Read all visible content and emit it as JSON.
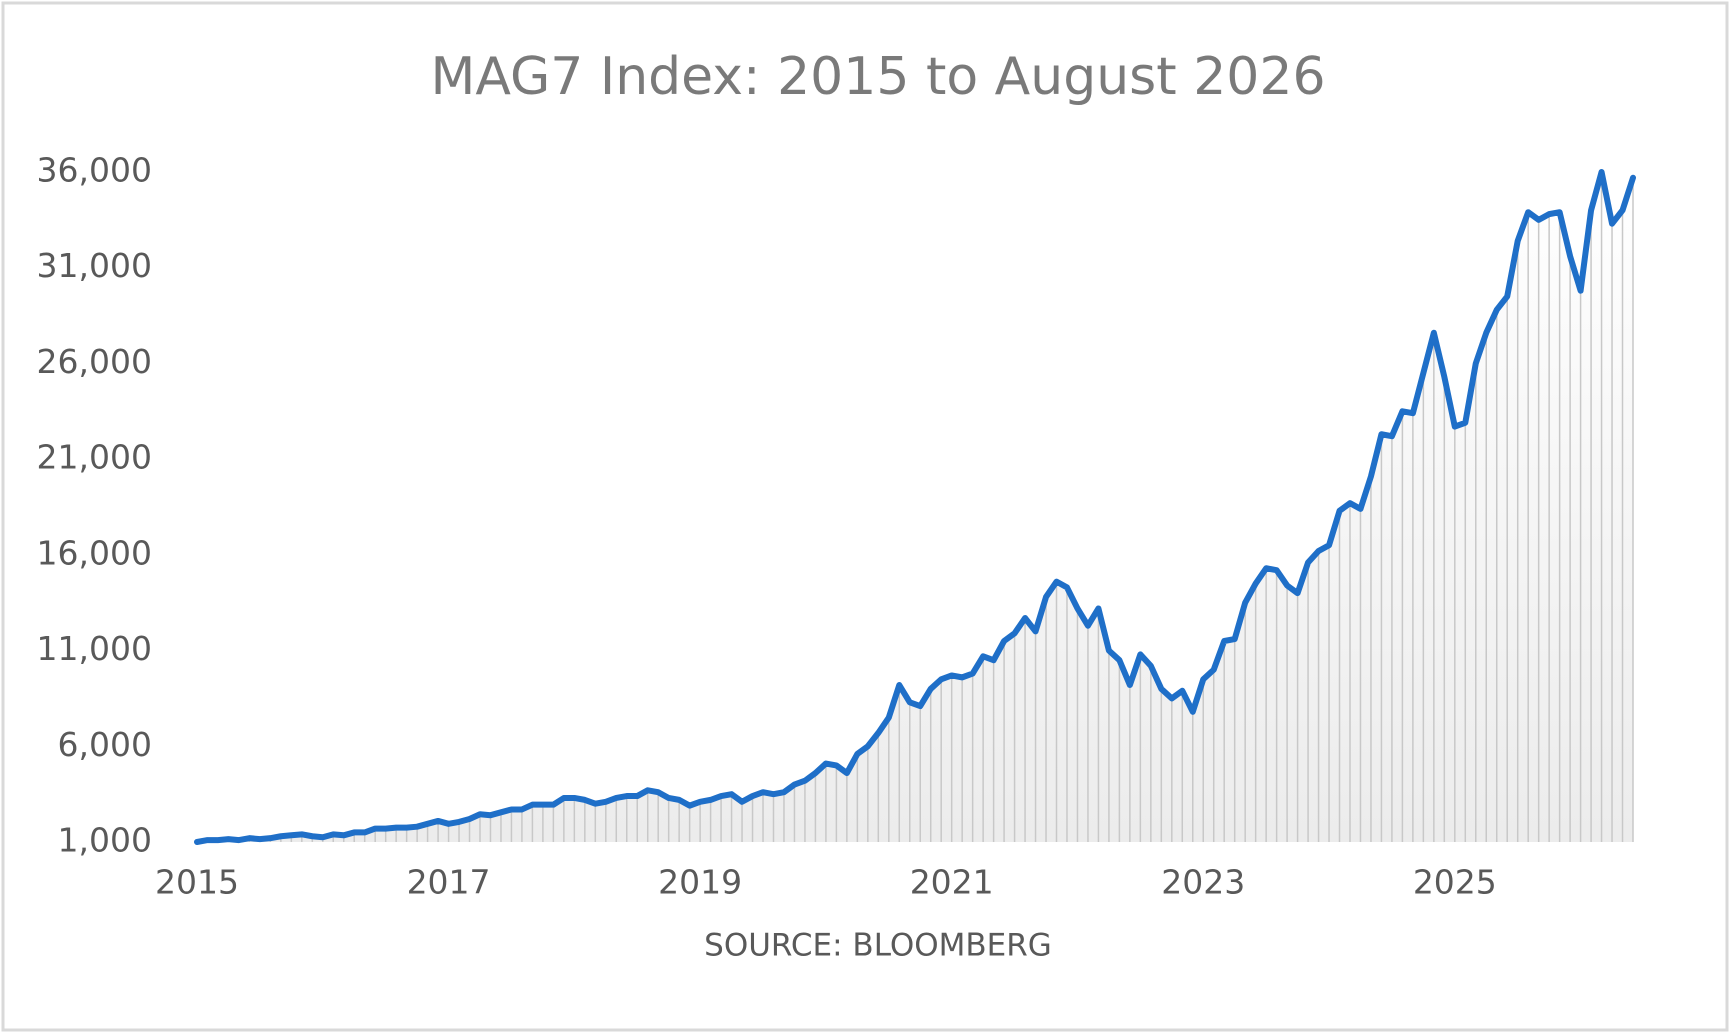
{
  "chart_data": {
    "type": "line",
    "title": "MAG7 Index: 2015 to August 2026",
    "x_label": "SOURCE: BLOOMBERG",
    "categories": [
      "2015",
      null,
      null,
      null,
      null,
      null,
      null,
      null,
      null,
      null,
      null,
      null,
      null,
      null,
      null,
      null,
      null,
      null,
      null,
      null,
      null,
      null,
      null,
      null,
      "2017",
      null,
      null,
      null,
      null,
      null,
      null,
      null,
      null,
      null,
      null,
      null,
      null,
      null,
      null,
      null,
      null,
      null,
      null,
      null,
      null,
      null,
      null,
      null,
      "2019",
      null,
      null,
      null,
      null,
      null,
      null,
      null,
      null,
      null,
      null,
      null,
      null,
      null,
      null,
      null,
      null,
      null,
      null,
      null,
      null,
      null,
      null,
      null,
      "2021",
      null,
      null,
      null,
      null,
      null,
      null,
      null,
      null,
      null,
      null,
      null,
      null,
      null,
      null,
      null,
      null,
      null,
      null,
      null,
      null,
      null,
      null,
      null,
      "2023",
      null,
      null,
      null,
      null,
      null,
      null,
      null,
      null,
      null,
      null,
      null,
      null,
      null,
      null,
      null,
      null,
      null,
      null,
      null,
      null,
      null,
      null,
      null,
      "2025",
      null,
      null,
      null,
      null,
      null,
      null,
      null,
      null,
      null,
      null,
      null,
      null,
      null,
      null,
      null,
      null,
      null
    ],
    "series": [
      {
        "name": "MAG7 Index",
        "color": "#1f6fc8",
        "values": [
          1000,
          1100,
          1100,
          1150,
          1100,
          1200,
          1150,
          1200,
          1300,
          1350,
          1400,
          1300,
          1250,
          1400,
          1350,
          1500,
          1500,
          1700,
          1700,
          1750,
          1750,
          1800,
          1950,
          2100,
          1950,
          2050,
          2200,
          2450,
          2400,
          2550,
          2700,
          2700,
          2950,
          2950,
          2950,
          3300,
          3300,
          3200,
          3000,
          3100,
          3300,
          3400,
          3400,
          3700,
          3600,
          3300,
          3200,
          2900,
          3100,
          3200,
          3400,
          3500,
          3100,
          3400,
          3600,
          3500,
          3600,
          4000,
          4200,
          4600,
          5100,
          5000,
          4600,
          5600,
          6000,
          6700,
          7500,
          9200,
          8300,
          8100,
          9000,
          9500,
          9700,
          9600,
          9800,
          10700,
          10500,
          11500,
          11900,
          12700,
          12000,
          13800,
          14600,
          14300,
          13200,
          12300,
          13200,
          11000,
          10500,
          9200,
          10800,
          10200,
          9000,
          8500,
          8900,
          7800,
          9500,
          10000,
          11500,
          11600,
          13500,
          14500,
          15300,
          15200,
          14400,
          14000,
          15600,
          16200,
          16500,
          18300,
          18700,
          18400,
          20100,
          22300,
          22200,
          23500,
          23400,
          25500,
          27600,
          25300,
          22700,
          22900,
          26000,
          27600,
          28800,
          29500,
          32400,
          33900,
          33500,
          33800,
          33900,
          31600,
          29800,
          34000,
          36000,
          33300,
          34000,
          35700
        ]
      }
    ],
    "ylim": [
      1000,
      36000
    ],
    "yticks": [
      {
        "value": 1000,
        "label": "1,000"
      },
      {
        "value": 6000,
        "label": "6,000"
      },
      {
        "value": 11000,
        "label": "11,000"
      },
      {
        "value": 16000,
        "label": "16,000"
      },
      {
        "value": 21000,
        "label": "21,000"
      },
      {
        "value": 26000,
        "label": "26,000"
      },
      {
        "value": 31000,
        "label": "31,000"
      },
      {
        "value": 36000,
        "label": "36,000"
      }
    ],
    "grid": false
  }
}
